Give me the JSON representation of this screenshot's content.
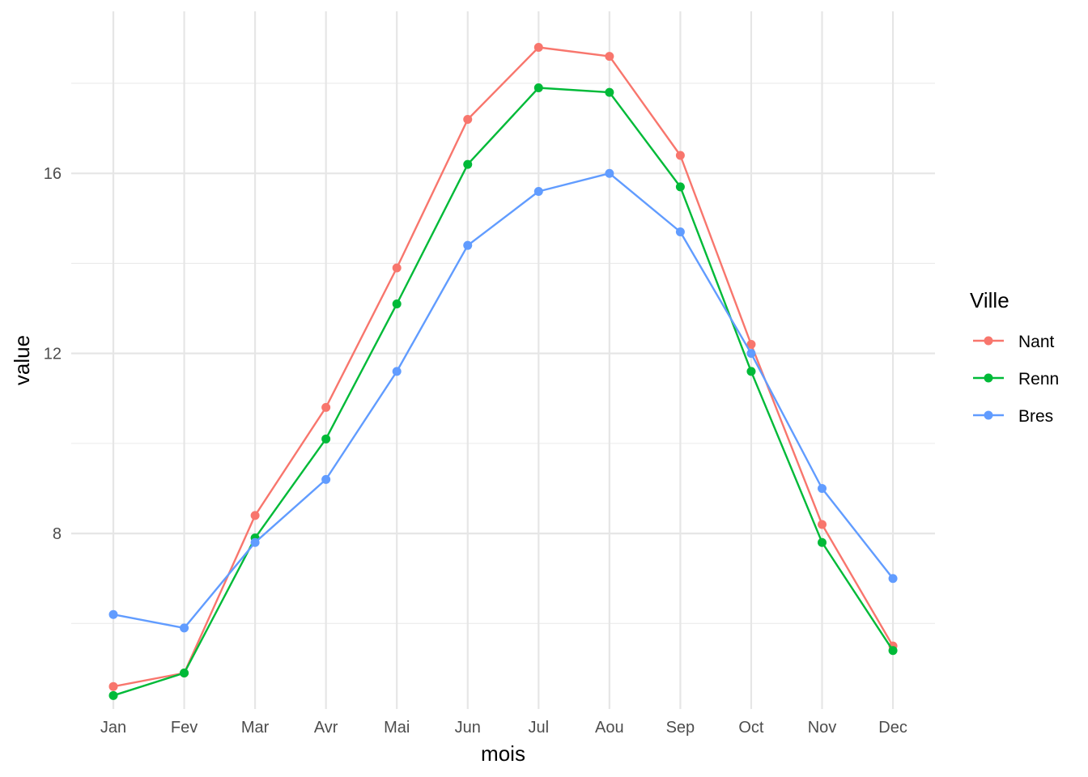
{
  "chart_data": {
    "type": "line",
    "title": "",
    "xlabel": "mois",
    "ylabel": "value",
    "categories": [
      "Jan",
      "Fev",
      "Mar",
      "Avr",
      "Mai",
      "Jun",
      "Jul",
      "Aou",
      "Sep",
      "Oct",
      "Nov",
      "Dec"
    ],
    "ylim": [
      4.1,
      19.6
    ],
    "y_ticks": [
      8,
      12,
      16
    ],
    "grid": true,
    "legend": {
      "title": "Ville",
      "placement": "right"
    },
    "series": [
      {
        "name": "Nant",
        "color": "#F8766D",
        "values": [
          4.6,
          4.9,
          8.4,
          10.8,
          13.9,
          17.2,
          18.8,
          18.6,
          16.4,
          12.2,
          8.2,
          5.5
        ]
      },
      {
        "name": "Renn",
        "color": "#00BA38",
        "values": [
          4.4,
          4.9,
          7.9,
          10.1,
          13.1,
          16.2,
          17.9,
          17.8,
          15.7,
          11.6,
          7.8,
          5.4
        ]
      },
      {
        "name": "Bres",
        "color": "#619CFF",
        "values": [
          6.2,
          5.9,
          7.8,
          9.2,
          11.6,
          14.4,
          15.6,
          16.0,
          14.7,
          12.0,
          9.0,
          7.0
        ]
      }
    ]
  }
}
